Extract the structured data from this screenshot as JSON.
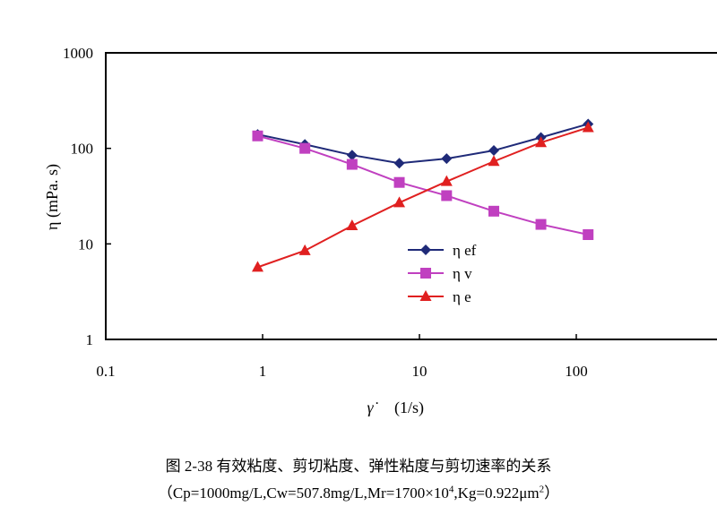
{
  "chart_data": {
    "type": "line",
    "x_scale": "log",
    "y_scale": "log",
    "xlim": [
      0.1,
      1000
    ],
    "ylim": [
      1,
      1000
    ],
    "x_ticks": [
      "0.1",
      "1",
      "10",
      "100"
    ],
    "y_ticks": [
      "1",
      "10",
      "100",
      "1000"
    ],
    "xlabel_symbol": "γ̇",
    "xlabel_unit": "(1/s)",
    "ylabel": "η (mPa. s)",
    "legend_position": "center",
    "series": [
      {
        "name": "η ef",
        "color": "#1f2a78",
        "marker": "diamond",
        "x": [
          0.93,
          1.86,
          3.72,
          7.44,
          14.9,
          29.8,
          59.5,
          119
        ],
        "y": [
          140,
          110,
          85,
          70,
          78,
          95,
          130,
          180
        ]
      },
      {
        "name": "η v",
        "color": "#c040c0",
        "marker": "square",
        "x": [
          0.93,
          1.86,
          3.72,
          7.44,
          14.9,
          29.8,
          59.5,
          119
        ],
        "y": [
          135,
          100,
          68,
          44,
          32,
          22,
          16,
          12.5
        ]
      },
      {
        "name": "η e",
        "color": "#e02020",
        "marker": "triangle",
        "x": [
          0.93,
          1.86,
          3.72,
          7.44,
          14.9,
          29.8,
          59.5,
          119
        ],
        "y": [
          5.7,
          8.5,
          15.5,
          27,
          45,
          73,
          115,
          165
        ]
      }
    ]
  },
  "caption": {
    "title": "图 2-38  有效粘度、剪切粘度、弹性粘度与剪切速率的关系",
    "sub_main": "（Cp=1000mg/L,Cw=507.8mg/L,Mr=1700×10",
    "sub_exp1": "4",
    "sub_mid": ",Kg=0.922μm",
    "sub_exp2": "2",
    "sub_end": "）"
  }
}
